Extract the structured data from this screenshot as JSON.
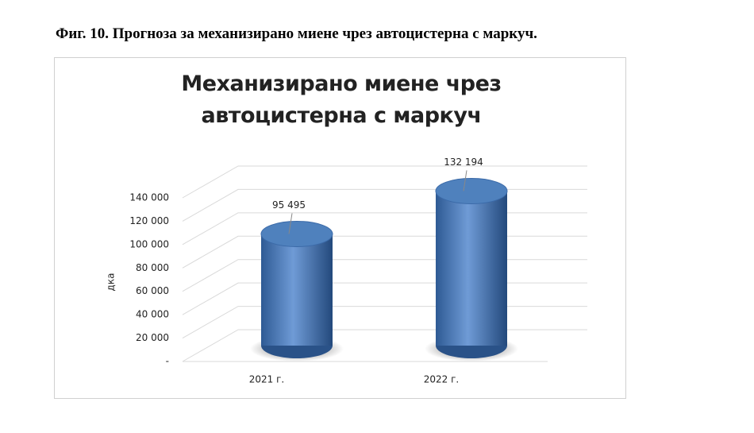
{
  "caption": "Фиг. 10. Прогноза за механизирано миене чрез автоцистерна с маркуч.",
  "chart_data": {
    "type": "cylinder",
    "title": "Механизирано миене чрез автоцистерна с маркуч",
    "y_label": "дка",
    "categories": [
      "2021 г.",
      "2022 г."
    ],
    "values": [
      95495,
      132194
    ],
    "value_labels": [
      "95 495",
      "132 194"
    ],
    "color": "#4f81bd",
    "ylim": [
      0,
      140000
    ],
    "yticks": [
      {
        "value": 0,
        "label": "-"
      },
      {
        "value": 20000,
        "label": "20 000"
      },
      {
        "value": 40000,
        "label": "40 000"
      },
      {
        "value": 60000,
        "label": "60 000"
      },
      {
        "value": 80000,
        "label": "80 000"
      },
      {
        "value": 100000,
        "label": "100 000"
      },
      {
        "value": 120000,
        "label": "120 000"
      },
      {
        "value": 140000,
        "label": "140 000"
      }
    ],
    "grid": true
  }
}
